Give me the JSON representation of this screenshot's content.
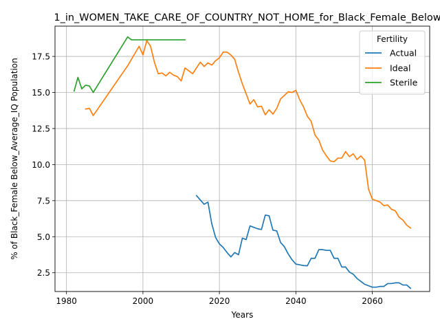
{
  "chart_data": {
    "type": "line",
    "title": "1_in_WOMEN_TAKE_CARE_OF_COUNTRY_NOT_HOME_for_Black_Female_Below",
    "xlabel": "Years",
    "ylabel": "% of Black_Female Below_Average_IQ Population",
    "xlim": [
      1977,
      2075
    ],
    "ylim": [
      1.2,
      19.6
    ],
    "xticks": [
      1980,
      2000,
      2020,
      2040,
      2060
    ],
    "yticks": [
      2.5,
      5.0,
      7.5,
      10.0,
      12.5,
      15.0,
      17.5
    ],
    "xtick_labels": [
      "1980",
      "2000",
      "2020",
      "2040",
      "2060"
    ],
    "ytick_labels": [
      "2.5",
      "5.0",
      "7.5",
      "10.0",
      "12.5",
      "15.0",
      "17.5"
    ],
    "grid": true,
    "legend": {
      "title": "Fertility",
      "placement": "top-right"
    },
    "series": [
      {
        "name": "Actual",
        "color": "#1f77b4",
        "x": [
          2014,
          2015,
          2016,
          2017,
          2018,
          2019,
          2020,
          2021,
          2022,
          2023,
          2024,
          2025,
          2026,
          2027,
          2028,
          2029,
          2030,
          2031,
          2032,
          2033,
          2034,
          2035,
          2036,
          2037,
          2038,
          2039,
          2040,
          2041,
          2042,
          2043,
          2044,
          2045,
          2046,
          2047,
          2048,
          2049,
          2050,
          2051,
          2052,
          2053,
          2054,
          2055,
          2056,
          2057,
          2058,
          2059,
          2060,
          2061,
          2062,
          2063,
          2064,
          2065,
          2066,
          2067,
          2068,
          2069,
          2070
        ],
        "y": [
          7.85,
          7.55,
          7.25,
          7.4,
          5.9,
          4.95,
          4.5,
          4.25,
          3.9,
          3.6,
          3.9,
          3.75,
          4.9,
          4.8,
          5.75,
          5.65,
          5.55,
          5.5,
          6.5,
          6.45,
          5.45,
          5.4,
          4.6,
          4.3,
          3.8,
          3.4,
          3.1,
          3.05,
          3.0,
          2.98,
          3.5,
          3.5,
          4.1,
          4.1,
          4.05,
          4.05,
          3.5,
          3.5,
          2.9,
          2.9,
          2.55,
          2.4,
          2.1,
          1.9,
          1.7,
          1.6,
          1.5,
          1.5,
          1.55,
          1.55,
          1.75,
          1.75,
          1.8,
          1.8,
          1.65,
          1.65,
          1.42
        ]
      },
      {
        "name": "Ideal",
        "color": "#ff7f0e",
        "x": [
          1985,
          1986,
          1987,
          1996,
          1999,
          2000,
          2001,
          2002,
          2003,
          2004,
          2005,
          2006,
          2007,
          2008,
          2009,
          2010,
          2011,
          2013,
          2015,
          2016,
          2017,
          2018,
          2019,
          2020,
          2021,
          2022,
          2023,
          2024,
          2025,
          2026,
          2027,
          2028,
          2029,
          2030,
          2031,
          2032,
          2033,
          2034,
          2035,
          2036,
          2037,
          2038,
          2039,
          2040,
          2041,
          2042,
          2043,
          2044,
          2045,
          2046,
          2047,
          2048,
          2049,
          2050,
          2051,
          2052,
          2053,
          2054,
          2055,
          2056,
          2057,
          2058,
          2059,
          2060,
          2061,
          2062,
          2063,
          2064,
          2065,
          2066,
          2067,
          2068,
          2069,
          2070
        ],
        "y": [
          13.85,
          13.9,
          13.4,
          16.85,
          18.2,
          17.6,
          18.6,
          18.2,
          17.1,
          16.3,
          16.35,
          16.15,
          16.4,
          16.2,
          16.1,
          15.8,
          16.7,
          16.3,
          17.1,
          16.8,
          17.05,
          16.9,
          17.2,
          17.4,
          17.8,
          17.8,
          17.6,
          17.3,
          16.4,
          15.6,
          14.9,
          14.2,
          14.5,
          14.0,
          14.05,
          13.45,
          13.8,
          13.5,
          13.9,
          14.55,
          14.8,
          15.05,
          15.0,
          15.15,
          14.5,
          14.0,
          13.35,
          13.0,
          12.05,
          11.7,
          11.0,
          10.6,
          10.25,
          10.2,
          10.45,
          10.45,
          10.9,
          10.55,
          10.75,
          10.35,
          10.6,
          10.3,
          8.3,
          7.6,
          7.5,
          7.4,
          7.15,
          7.2,
          6.9,
          6.8,
          6.35,
          6.15,
          5.8,
          5.6
        ]
      },
      {
        "name": "Sterile",
        "color": "#2ca02c",
        "x": [
          1982,
          1983,
          1984,
          1985,
          1986,
          1987,
          1996,
          1997,
          1998,
          1999,
          2000,
          2001,
          2002,
          2003,
          2004,
          2005,
          2006,
          2007,
          2008,
          2009,
          2010,
          2011
        ],
        "y": [
          15.1,
          16.05,
          15.25,
          15.5,
          15.45,
          15.0,
          18.85,
          18.65,
          18.65,
          18.65,
          18.65,
          18.65,
          18.65,
          18.65,
          18.65,
          18.65,
          18.65,
          18.65,
          18.65,
          18.65,
          18.65,
          18.65
        ]
      }
    ]
  }
}
